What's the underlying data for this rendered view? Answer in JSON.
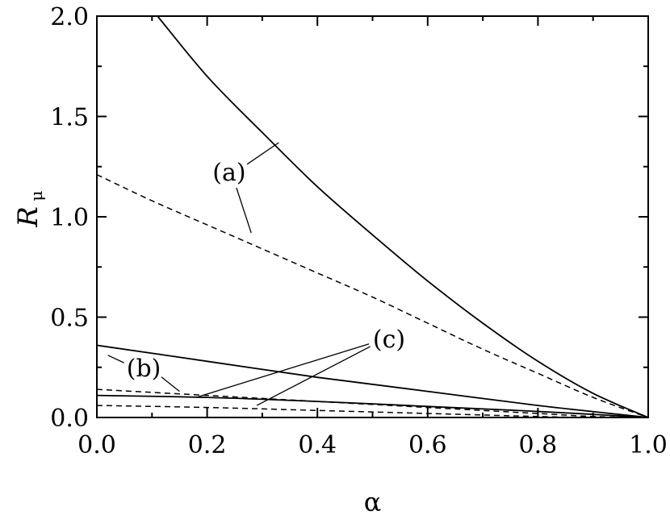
{
  "chart_data": {
    "type": "line",
    "xlabel": "α",
    "ylabel": "R",
    "ylabel_sub": "μ",
    "xlim": [
      0.0,
      1.0
    ],
    "ylim": [
      0.0,
      2.0
    ],
    "xticks": [
      "0.0",
      "0.2",
      "0.4",
      "0.6",
      "0.8",
      "1.0"
    ],
    "yticks": [
      "0.0",
      "0.5",
      "1.0",
      "1.5",
      "2.0"
    ],
    "grid": false,
    "legend": "none",
    "series": [
      {
        "style": "solid",
        "x": [
          0.11,
          0.2,
          0.3,
          0.4,
          0.5,
          0.6,
          0.7,
          0.8,
          0.9,
          1.0
        ],
        "y": [
          2.0,
          1.7,
          1.42,
          1.15,
          0.91,
          0.68,
          0.47,
          0.28,
          0.12,
          0.0
        ]
      },
      {
        "style": "dashed",
        "x": [
          0.0,
          0.1,
          0.2,
          0.3,
          0.4,
          0.5,
          0.6,
          0.7,
          0.8,
          0.9,
          1.0
        ],
        "y": [
          1.21,
          1.08,
          0.96,
          0.84,
          0.72,
          0.6,
          0.47,
          0.34,
          0.22,
          0.1,
          0.0
        ]
      },
      {
        "style": "solid",
        "x": [
          0.0,
          0.2,
          0.4,
          0.6,
          0.8,
          1.0
        ],
        "y": [
          0.36,
          0.28,
          0.2,
          0.13,
          0.06,
          0.0
        ]
      },
      {
        "style": "dashed",
        "x": [
          0.0,
          0.2,
          0.4,
          0.6,
          0.8,
          0.9,
          1.0
        ],
        "y": [
          0.14,
          0.11,
          0.08,
          0.05,
          0.02,
          0.005,
          0.0
        ]
      },
      {
        "style": "solid",
        "x": [
          0.0,
          0.2,
          0.4,
          0.6,
          0.8,
          1.0
        ],
        "y": [
          0.11,
          0.1,
          0.08,
          0.055,
          0.03,
          0.0
        ]
      },
      {
        "style": "dashed",
        "x": [
          0.0,
          0.2,
          0.4,
          0.6,
          0.8,
          0.9,
          1.0
        ],
        "y": [
          0.06,
          0.05,
          0.035,
          0.02,
          0.005,
          0.0,
          0.0
        ]
      }
    ],
    "annotations": [
      {
        "text": "(a)",
        "tx": 0.24,
        "ty": 1.22,
        "targets": [
          [
            0.33,
            1.37
          ],
          [
            0.28,
            0.92
          ]
        ]
      },
      {
        "text": "(b)",
        "tx": 0.085,
        "ty": 0.245,
        "targets": [
          [
            0.02,
            0.31
          ],
          [
            0.15,
            0.13
          ]
        ]
      },
      {
        "text": "(c)",
        "tx": 0.53,
        "ty": 0.39,
        "targets": [
          [
            0.18,
            0.1
          ],
          [
            0.29,
            0.06
          ]
        ]
      }
    ]
  }
}
